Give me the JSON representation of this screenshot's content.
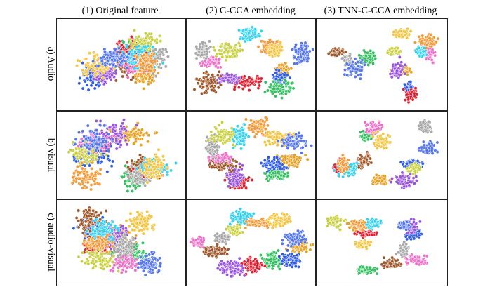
{
  "columns": [
    "(1) Original feature",
    "(2) C-CCA embedding",
    "(3) TNN-C-CCA embedding"
  ],
  "rows": [
    "a) Audio",
    "b) visual",
    "c)  audio-visual"
  ],
  "palette": [
    "#e8a020",
    "#2f5ce8",
    "#35c060",
    "#e02030",
    "#9a55e0",
    "#a0582a",
    "#ee70c8",
    "#a8a8a8",
    "#c8d040",
    "#33d2f0",
    "#f59a38",
    "#f4c540",
    "#5577ee"
  ]
}
